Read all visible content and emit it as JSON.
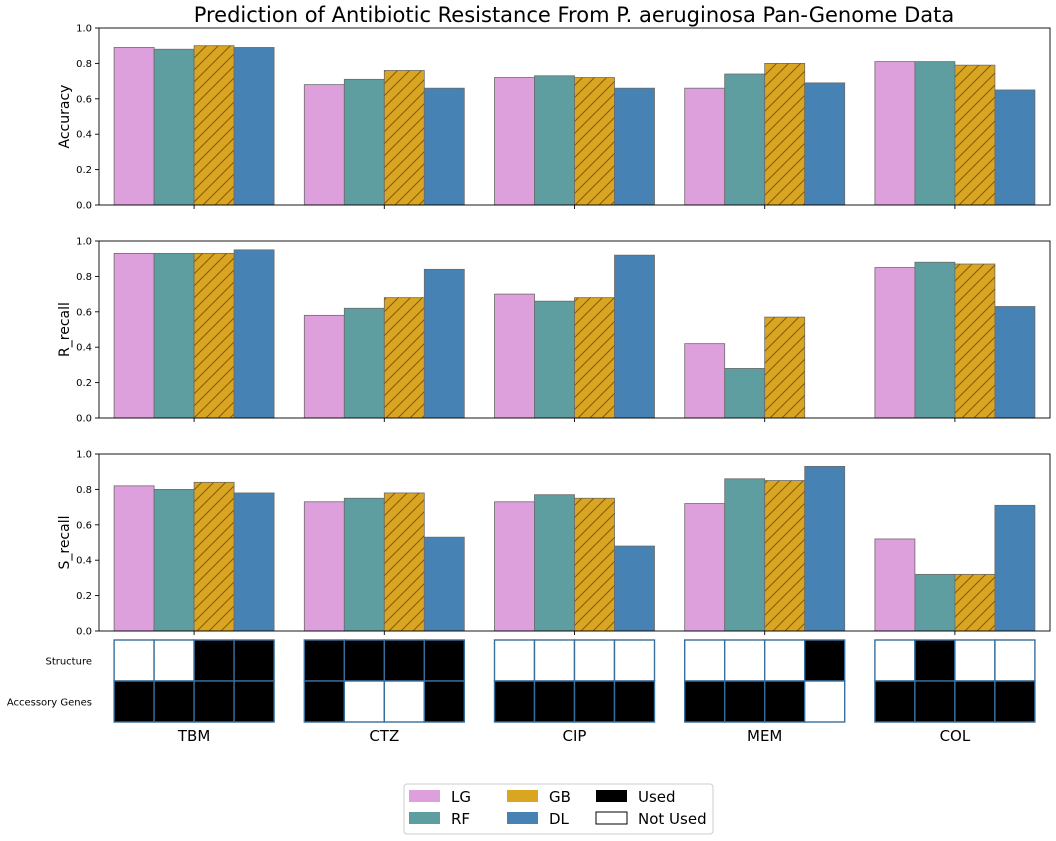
{
  "chart_data": {
    "type": "bar",
    "title": "Prediction of Antibiotic Resistance From P. aeruginosa Pan-Genome Data",
    "categories": [
      "TBM",
      "CTZ",
      "CIP",
      "MEM",
      "COL"
    ],
    "models": [
      {
        "name": "LG",
        "color": "#dda0dd",
        "hatch": false
      },
      {
        "name": "RF",
        "color": "#5f9ea0",
        "hatch": false
      },
      {
        "name": "GB",
        "color": "#daa520",
        "hatch": true
      },
      {
        "name": "DL",
        "color": "#4682b4",
        "hatch": false
      }
    ],
    "panels": [
      {
        "ylabel": "Accuracy",
        "ylim": [
          0,
          1.0
        ],
        "yticks": [
          "0.0",
          "0.2",
          "0.4",
          "0.6",
          "0.8",
          "1.0"
        ],
        "series": [
          {
            "name": "LG",
            "values": [
              0.89,
              0.68,
              0.72,
              0.66,
              0.81
            ]
          },
          {
            "name": "RF",
            "values": [
              0.88,
              0.71,
              0.73,
              0.74,
              0.81
            ]
          },
          {
            "name": "GB",
            "values": [
              0.9,
              0.76,
              0.72,
              0.8,
              0.79
            ]
          },
          {
            "name": "DL",
            "values": [
              0.89,
              0.66,
              0.66,
              0.69,
              0.65
            ]
          }
        ]
      },
      {
        "ylabel": "R_recall",
        "ylim": [
          0,
          1.0
        ],
        "yticks": [
          "0.0",
          "0.2",
          "0.4",
          "0.6",
          "0.8",
          "1.0"
        ],
        "series": [
          {
            "name": "LG",
            "values": [
              0.93,
              0.58,
              0.7,
              0.42,
              0.85
            ]
          },
          {
            "name": "RF",
            "values": [
              0.93,
              0.62,
              0.66,
              0.28,
              0.88
            ]
          },
          {
            "name": "GB",
            "values": [
              0.93,
              0.68,
              0.68,
              0.57,
              0.87
            ]
          },
          {
            "name": "DL",
            "values": [
              0.95,
              0.84,
              0.92,
              0.0,
              0.63
            ]
          }
        ]
      },
      {
        "ylabel": "S_recall",
        "ylim": [
          0,
          1.0
        ],
        "yticks": [
          "0.0",
          "0.2",
          "0.4",
          "0.6",
          "0.8",
          "1.0"
        ],
        "series": [
          {
            "name": "LG",
            "values": [
              0.82,
              0.73,
              0.73,
              0.72,
              0.52
            ]
          },
          {
            "name": "RF",
            "values": [
              0.8,
              0.75,
              0.77,
              0.86,
              0.32
            ]
          },
          {
            "name": "GB",
            "values": [
              0.84,
              0.78,
              0.75,
              0.85,
              0.32
            ]
          },
          {
            "name": "DL",
            "values": [
              0.78,
              0.53,
              0.48,
              0.93,
              0.71
            ]
          }
        ]
      }
    ],
    "feature_matrix": {
      "rows": [
        "Structure",
        "Accessory Genes"
      ],
      "used": {
        "TBM": [
          [
            false,
            false,
            true,
            true
          ],
          [
            true,
            true,
            true,
            true
          ]
        ],
        "CTZ": [
          [
            true,
            true,
            true,
            true
          ],
          [
            true,
            false,
            false,
            true
          ]
        ],
        "CIP": [
          [
            false,
            false,
            false,
            false
          ],
          [
            true,
            true,
            true,
            true
          ]
        ],
        "MEM": [
          [
            false,
            false,
            false,
            true
          ],
          [
            true,
            true,
            true,
            false
          ]
        ],
        "COL": [
          [
            false,
            true,
            false,
            false
          ],
          [
            true,
            true,
            true,
            true
          ]
        ]
      }
    },
    "legend": {
      "placement": "bottom-center",
      "entries": [
        "LG",
        "RF",
        "GB",
        "DL"
      ],
      "used_label": "Used",
      "not_used_label": "Not Used"
    },
    "grid": false
  }
}
